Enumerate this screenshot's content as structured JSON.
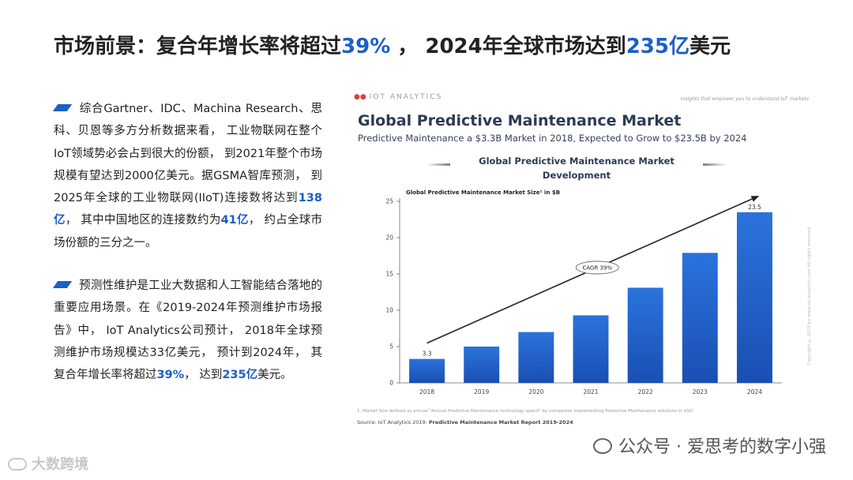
{
  "slide": {
    "title": {
      "part1": "市场前景：复合年增长率将超过",
      "highlight1": "39%",
      "part2": " ， 2024年全球市场达到",
      "highlight2": "235亿",
      "part3": "美元"
    },
    "bullet1": {
      "text1": "综合Gartner、IDC、Machina Research、思科、贝恩等多方分析数据来看， 工业物联网在整个IoT领域势必会占到很大的份额， 到2021年整个市场规模有望达到2000亿美元。据GSMA智库预测， 到2025年全球的工业物联网(IIoT)连接数将达到",
      "hl1": "138亿",
      "text2": "， 其中中国地区的连接数约为",
      "hl2": "41亿",
      "text3": "， 约占全球市场份额的三分之一。"
    },
    "bullet2": {
      "text1": "预测性维护是工业大数据和人工智能结合落地的重要应用场景。在《2019-2024年预测维护市场报告》中， IoT Analytics公司预计， 2018年全球预测维护市场规模达33亿美元， 预计到2024年， 其复合年增长率将超过",
      "hl1": "39%",
      "text2": "， 达到",
      "hl2": "235亿",
      "text3": "美元。"
    }
  },
  "figure": {
    "brand": "IOT ANALYTICS",
    "tagline": "Insights that empower you to understand IoT markets",
    "title": "Global Predictive Maintenance Market",
    "subtitle": "Predictive Maintenance a $3.3B Market in 2018, Expected to Grow to $23.5B by 2024",
    "banner": "Global Predictive Maintenance Market Development",
    "footnote": "1. Market Size defined as annual \"Annual Predictive Maintenance technology spend\" by companies implementing Predictive Maintenance solutions in USD",
    "source_label": "Source: IoT Analytics 2019: ",
    "source_report": "Predictive Maintenance Market Report 2019-2024",
    "copyright": "Copyright © 2019 by www.iot-analytics.com All rights reserved"
  },
  "chart_data": {
    "type": "bar",
    "title": "Global Predictive Maintenance Market Size¹ in $B",
    "categories": [
      "2018",
      "2019",
      "2020",
      "2021",
      "2022",
      "2023",
      "2024"
    ],
    "values": [
      3.3,
      5.0,
      7.0,
      9.3,
      13.1,
      17.9,
      23.5
    ],
    "value_labels": [
      "3.3",
      "",
      "",
      "",
      "",
      "",
      "23.5"
    ],
    "yticks": [
      0,
      5,
      10,
      15,
      20,
      25
    ],
    "ylim": [
      0,
      25
    ],
    "annotation": "CAGR 39%",
    "grid": false,
    "colors": {
      "bar_top": "#2a73dc",
      "bar_bottom": "#1a4fb3",
      "arrow": "#222222"
    }
  },
  "watermarks": {
    "right": "公众号 · 爱思考的数字小强",
    "left": "大数跨境"
  }
}
